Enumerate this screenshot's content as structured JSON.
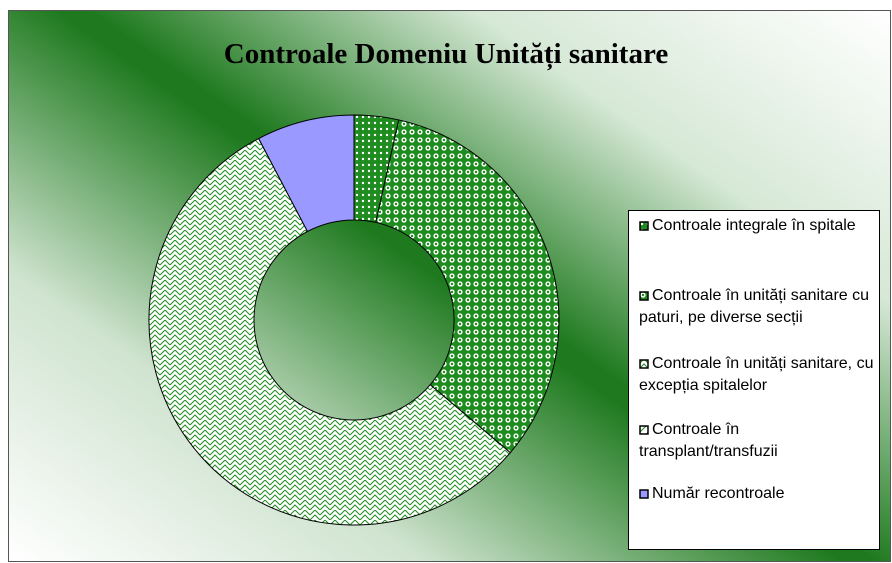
{
  "chart_data": {
    "type": "donut",
    "title": "Controale Domeniu Unități sanitare",
    "categories": [
      "Controale integrale în spitale",
      "Controale în unități sanitare cu paturi, pe diverse secții",
      "Controale în unități sanitare, cu excepția spitalelor",
      "Controale în transplant/transfuzii",
      "Număr recontroale"
    ],
    "values": [
      3.5,
      32.7,
      56.1,
      0,
      7.7
    ],
    "colors": [
      "#1e8c1e",
      "#1e8c1e",
      "#ffffff",
      "#ffffff",
      "#9999ff"
    ],
    "legend": "right"
  }
}
